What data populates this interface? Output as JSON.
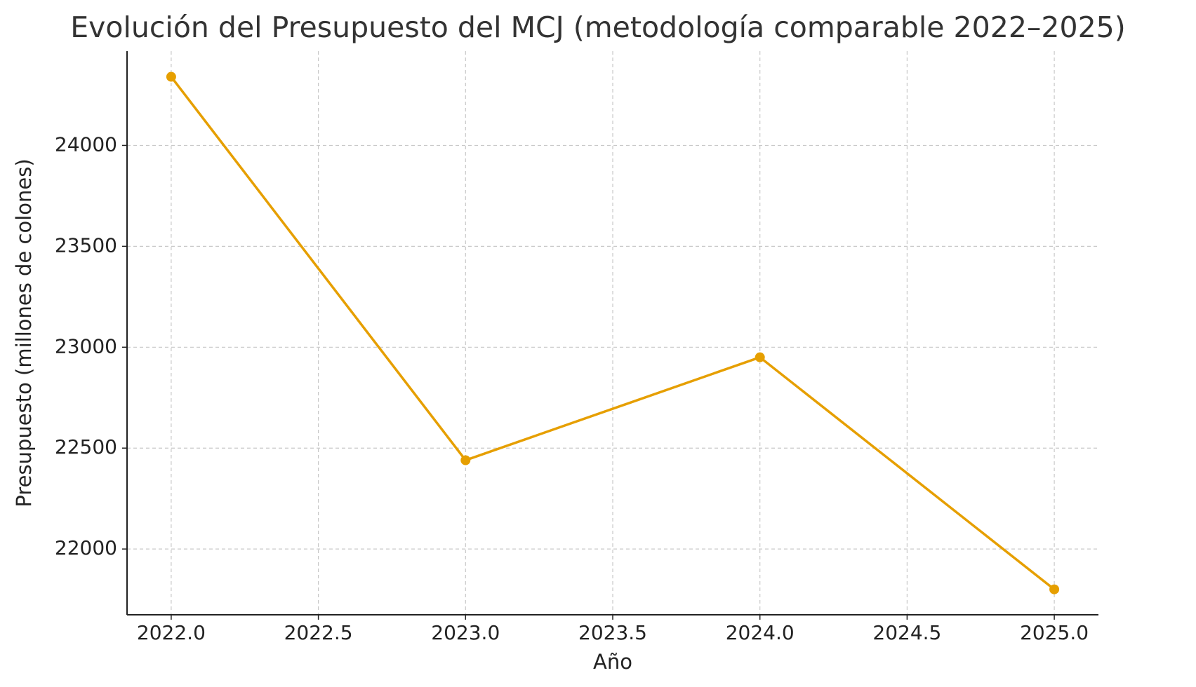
{
  "chart_data": {
    "type": "line",
    "title": "Evolución del Presupuesto del MCJ (metodología comparable 2022–2025)",
    "x_label": "Año",
    "y_label": "Presupuesto (millones de colones)",
    "x": [
      2022,
      2023,
      2024,
      2025
    ],
    "series": [
      {
        "color": "#e69f00",
        "values": [
          24340,
          22440,
          22950,
          21800
        ]
      }
    ],
    "xlim": [
      2021.85,
      2025.15
    ],
    "xticks": [
      {
        "value": 2022,
        "label": "2022.0"
      },
      2022.5,
      {
        "value": 2023,
        "label": "2023.0"
      },
      2023.5,
      {
        "value": 2024,
        "label": "2024.0"
      },
      2024.5,
      {
        "value": 2025,
        "label": "2025.0"
      }
    ],
    "ylim": [
      21674,
      24467
    ],
    "yticks": [
      22000,
      22500,
      23000,
      23500,
      24000
    ],
    "grid": true
  }
}
